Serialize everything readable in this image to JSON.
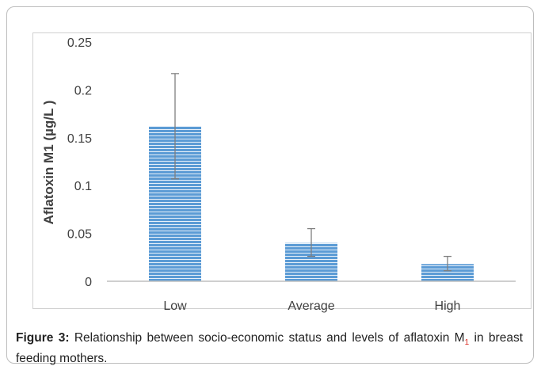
{
  "chart_data": {
    "type": "bar",
    "categories": [
      "Low",
      "Average",
      "High"
    ],
    "values": [
      0.162,
      0.04,
      0.018
    ],
    "error_high": [
      0.217,
      0.055,
      0.026
    ],
    "error_low": [
      0.107,
      0.026,
      0.011
    ],
    "ylabel": "Aflatoxin M1 (µg/L )",
    "xlabel": "",
    "title": "",
    "ylim": [
      0,
      0.25
    ],
    "yticks": [
      "0",
      "0.05",
      "0.1",
      "0.15",
      "0.2",
      "0.25"
    ],
    "grid": false,
    "legend": "none",
    "bar_color": "#5b9bd5",
    "bar_stripe_color": "#ffffff",
    "error_bar_color": "#7f7f7f"
  },
  "caption": {
    "label": "Figure 3:",
    "text_before": " Relationship between socio-economic status and levels of aflatoxin M",
    "subscript": "1",
    "text_after": " in breast feeding mothers."
  }
}
